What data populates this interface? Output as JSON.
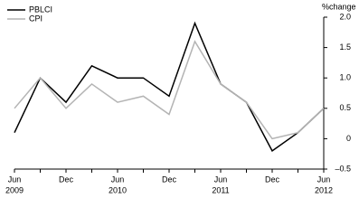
{
  "chart_data": {
    "type": "line",
    "y_axis_label": "%change",
    "categories": [
      "Jun",
      null,
      "Dec",
      null,
      "Jun",
      null,
      "Dec",
      null,
      "Jun",
      null,
      "Dec",
      null,
      "Jun"
    ],
    "year_labels": [
      "2009",
      null,
      null,
      null,
      "2010",
      null,
      null,
      null,
      "2011",
      null,
      null,
      null,
      "2012"
    ],
    "series": [
      {
        "name": "PBLCI",
        "color": "#000000",
        "values": [
          0.1,
          1.0,
          0.6,
          1.2,
          1.0,
          1.0,
          0.7,
          1.9,
          0.9,
          0.6,
          -0.2,
          0.1,
          0.5
        ]
      },
      {
        "name": "CPI",
        "color": "#b4b4b4",
        "values": [
          0.5,
          1.0,
          0.5,
          0.9,
          0.6,
          0.7,
          0.4,
          1.6,
          0.9,
          0.6,
          0.0,
          0.1,
          0.5
        ]
      }
    ],
    "ylim": [
      -0.5,
      2.0
    ],
    "yticks": [
      {
        "value": -0.5,
        "label": "–0.5"
      },
      0,
      {
        "value": 0.5,
        "label": "0.5"
      },
      {
        "value": 1,
        "label": "1.0"
      },
      {
        "value": 1.5,
        "label": "1.5"
      },
      {
        "value": 2,
        "label": "2.0"
      }
    ],
    "legend_position": "top-left"
  }
}
